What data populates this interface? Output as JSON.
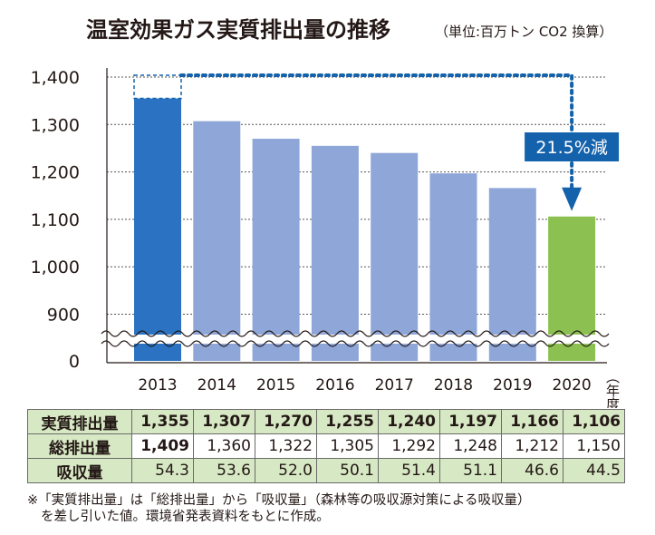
{
  "title": "温室効果ガス実質排出量の推移",
  "unit": "（単位:百万トン CO2 換算）",
  "chart_data": {
    "type": "bar",
    "categories": [
      "2013",
      "2014",
      "2015",
      "2016",
      "2017",
      "2018",
      "2019",
      "2020"
    ],
    "values": [
      1355,
      1307,
      1270,
      1255,
      1240,
      1197,
      1166,
      1106
    ],
    "ylim": [
      850,
      1400
    ],
    "axis_break": true,
    "yticks": [
      "1,400",
      "1,300",
      "1,200",
      "1,100",
      "1,000",
      "900",
      "0"
    ],
    "xlabel": "（年度）",
    "colors": {
      "first": "#2b73c2",
      "middle": "#8ea6d8",
      "last": "#8cc152"
    },
    "annotation": "21.5%減",
    "annotation_color": "#1462ac"
  },
  "table": {
    "rows": [
      {
        "label": "実質排出量",
        "values": [
          "1,355",
          "1,307",
          "1,270",
          "1,255",
          "1,240",
          "1,197",
          "1,166",
          "1,106"
        ]
      },
      {
        "label": "総排出量",
        "values": [
          "1,409",
          "1,360",
          "1,322",
          "1,305",
          "1,292",
          "1,248",
          "1,212",
          "1,150"
        ]
      },
      {
        "label": "吸収量",
        "values": [
          "54.3",
          "53.6",
          "52.0",
          "50.1",
          "51.4",
          "51.1",
          "46.6",
          "44.5"
        ]
      }
    ]
  },
  "note": {
    "line1": "※「実質排出量」は「総排出量」から「吸収量」（森林等の吸収源対策による吸収量）",
    "line2": "を差し引いた値。環境省発表資料をもとに作成。"
  }
}
